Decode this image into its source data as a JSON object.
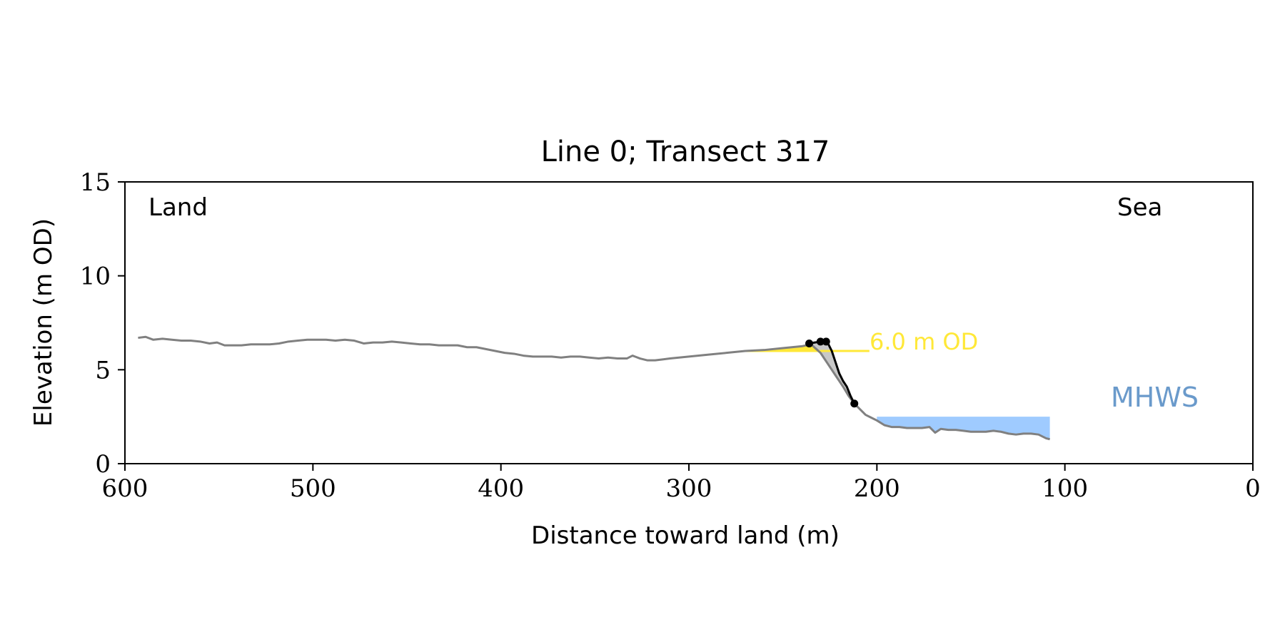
{
  "chart_data": {
    "type": "line",
    "title": "Line 0; Transect 317",
    "xlabel": "Distance toward land (m)",
    "ylabel": "Elevation (m OD)",
    "xlim": [
      600,
      0
    ],
    "ylim": [
      0,
      15
    ],
    "x_ticks": [
      600,
      500,
      400,
      300,
      200,
      100,
      0
    ],
    "y_ticks": [
      0,
      5,
      10,
      15
    ],
    "grid": false,
    "annotations": {
      "land": "Land",
      "sea": "Sea",
      "threshold_label": "6.0 m OD",
      "mhws_label": "MHWS"
    },
    "threshold": {
      "elevation": 6.0,
      "x_start": 270,
      "x_end": 204
    },
    "mhws": {
      "elevation": 2.5,
      "x_start": 200,
      "x_end": 108
    },
    "profile": {
      "x": [
        593,
        589,
        585,
        580,
        575,
        570,
        565,
        560,
        555,
        551,
        547,
        543,
        538,
        533,
        528,
        523,
        518,
        513,
        508,
        503,
        498,
        493,
        488,
        483,
        478,
        473,
        468,
        463,
        458,
        453,
        448,
        443,
        438,
        433,
        428,
        423,
        418,
        413,
        408,
        403,
        398,
        393,
        388,
        383,
        378,
        373,
        368,
        363,
        358,
        353,
        348,
        343,
        338,
        333,
        330,
        326,
        322,
        318,
        314,
        310,
        300,
        290,
        280,
        270,
        260,
        250,
        240,
        235,
        230,
        226,
        222,
        218,
        215,
        212,
        209,
        206,
        203,
        200,
        196,
        192,
        188,
        184,
        180,
        176,
        172,
        169,
        166,
        162,
        158,
        154,
        150,
        146,
        142,
        138,
        134,
        130,
        126,
        122,
        118,
        114,
        110,
        108
      ],
      "y": [
        6.7,
        6.75,
        6.6,
        6.65,
        6.6,
        6.55,
        6.55,
        6.5,
        6.4,
        6.45,
        6.3,
        6.3,
        6.3,
        6.35,
        6.35,
        6.35,
        6.4,
        6.5,
        6.55,
        6.6,
        6.6,
        6.6,
        6.55,
        6.6,
        6.55,
        6.4,
        6.45,
        6.45,
        6.5,
        6.45,
        6.4,
        6.35,
        6.35,
        6.3,
        6.3,
        6.3,
        6.2,
        6.2,
        6.1,
        6.0,
        5.9,
        5.85,
        5.75,
        5.7,
        5.7,
        5.7,
        5.65,
        5.7,
        5.7,
        5.65,
        5.6,
        5.65,
        5.6,
        5.6,
        5.75,
        5.6,
        5.5,
        5.5,
        5.55,
        5.6,
        5.7,
        5.8,
        5.9,
        6.0,
        6.05,
        6.15,
        6.25,
        6.35,
        5.9,
        5.3,
        4.7,
        4.1,
        3.6,
        3.2,
        2.9,
        2.6,
        2.45,
        2.3,
        2.05,
        1.95,
        1.95,
        1.9,
        1.9,
        1.9,
        1.95,
        1.65,
        1.85,
        1.8,
        1.8,
        1.75,
        1.7,
        1.7,
        1.7,
        1.75,
        1.7,
        1.6,
        1.55,
        1.6,
        1.6,
        1.55,
        1.35,
        1.3
      ]
    },
    "cliff": {
      "x": [
        236,
        233,
        230,
        228,
        226,
        224,
        222,
        220,
        218,
        216,
        214,
        212
      ],
      "y": [
        6.4,
        6.45,
        6.5,
        6.5,
        6.4,
        6.0,
        5.4,
        4.8,
        4.4,
        4.1,
        3.6,
        3.2
      ]
    },
    "cliff_points": {
      "x": [
        236,
        230,
        227,
        212
      ],
      "y": [
        6.4,
        6.5,
        6.5,
        3.2
      ]
    },
    "colors": {
      "profile": "#808080",
      "cliff": "#000000",
      "threshold": "#FFE838",
      "mhws_fill": "#9FCBFF",
      "mhws_text": "#6A9ACB",
      "cliff_fill": "#C8C8C8"
    }
  }
}
